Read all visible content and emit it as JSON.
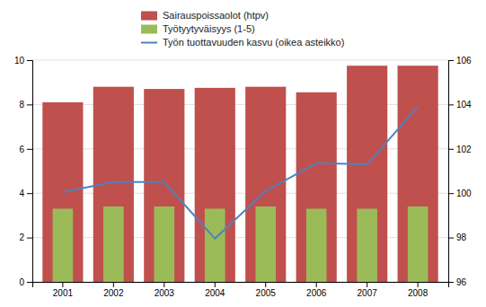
{
  "chart_data": {
    "type": "bar",
    "categories": [
      "2001",
      "2002",
      "2003",
      "2004",
      "2005",
      "2006",
      "2007",
      "2008"
    ],
    "series": [
      {
        "name": "Sairauspoissaolot (htpv)",
        "type": "bar",
        "color": "#c0504d",
        "values": [
          8.1,
          8.8,
          8.7,
          8.75,
          8.8,
          8.55,
          9.75,
          9.75
        ]
      },
      {
        "name": "Työtyytyväisyys (1-5)",
        "type": "bar",
        "color": "#9bbb59",
        "values": [
          3.3,
          3.4,
          3.4,
          3.3,
          3.4,
          3.3,
          3.3,
          3.4
        ]
      },
      {
        "name": "Työn tuottavuuden kasvu (oikea asteikko)",
        "type": "line",
        "axis": "y2",
        "color": "#4f81bd",
        "values": [
          100.05,
          100.5,
          100.5,
          97.95,
          100.1,
          101.35,
          101.3,
          103.9
        ]
      }
    ],
    "ylim": [
      0,
      10
    ],
    "yticks": [
      0,
      2,
      4,
      6,
      8,
      10
    ],
    "y2lim": [
      96,
      106
    ],
    "y2ticks": [
      96,
      98,
      100,
      102,
      104,
      106
    ],
    "grid": true,
    "legend": "top"
  }
}
